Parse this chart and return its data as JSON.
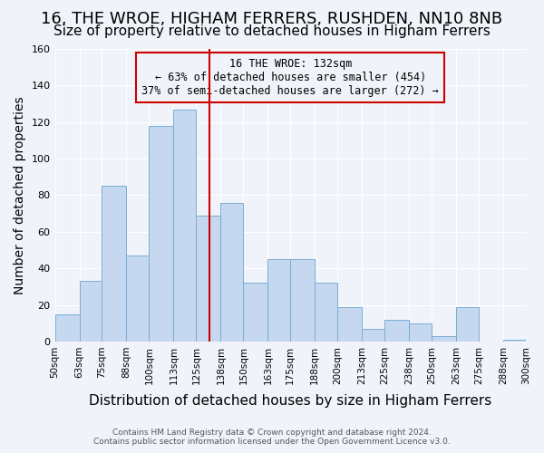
{
  "title": "16, THE WROE, HIGHAM FERRERS, RUSHDEN, NN10 8NB",
  "subtitle": "Size of property relative to detached houses in Higham Ferrers",
  "xlabel": "Distribution of detached houses by size in Higham Ferrers",
  "ylabel": "Number of detached properties",
  "bins": [
    "50sqm",
    "63sqm",
    "75sqm",
    "88sqm",
    "100sqm",
    "113sqm",
    "125sqm",
    "138sqm",
    "150sqm",
    "163sqm",
    "175sqm",
    "188sqm",
    "200sqm",
    "213sqm",
    "225sqm",
    "238sqm",
    "250sqm",
    "263sqm",
    "275sqm",
    "288sqm",
    "300sqm"
  ],
  "bin_edges": [
    50,
    63,
    75,
    88,
    100,
    113,
    125,
    138,
    150,
    163,
    175,
    188,
    200,
    213,
    225,
    238,
    250,
    263,
    275,
    288,
    300
  ],
  "values": [
    15,
    33,
    85,
    47,
    118,
    127,
    69,
    76,
    32,
    45,
    45,
    32,
    19,
    7,
    12,
    10,
    3,
    19,
    0,
    1
  ],
  "bar_color": "#c5d8f0",
  "bar_edge_color": "#7aadd4",
  "marker_value": 132,
  "marker_color": "#cc0000",
  "annotation_title": "16 THE WROE: 132sqm",
  "annotation_line1": "← 63% of detached houses are smaller (454)",
  "annotation_line2": "37% of semi-detached houses are larger (272) →",
  "annotation_box_color": "#cc0000",
  "ylim": [
    0,
    160
  ],
  "yticks": [
    0,
    20,
    40,
    60,
    80,
    100,
    120,
    140,
    160
  ],
  "footnote1": "Contains HM Land Registry data © Crown copyright and database right 2024.",
  "footnote2": "Contains public sector information licensed under the Open Government Licence v3.0.",
  "bg_color": "#f0f4fa",
  "grid_color": "#ffffff",
  "title_fontsize": 13,
  "subtitle_fontsize": 11,
  "xlabel_fontsize": 11,
  "ylabel_fontsize": 10
}
